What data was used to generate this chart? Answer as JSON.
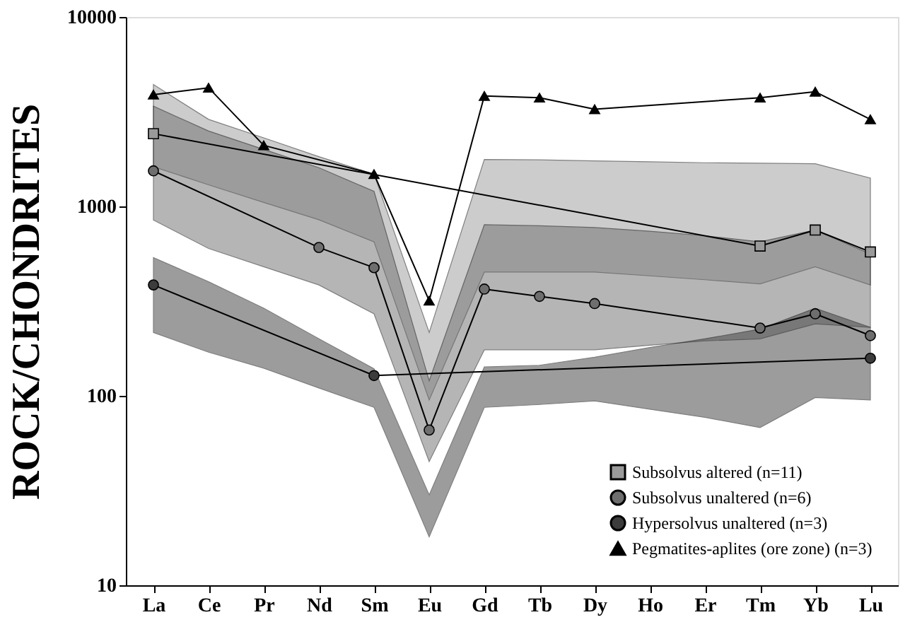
{
  "chart_data": {
    "type": "line",
    "ylabel": "ROCK/CHONDRITES",
    "categories": [
      "La",
      "Ce",
      "Pr",
      "Nd",
      "Sm",
      "Eu",
      "Gd",
      "Tb",
      "Dy",
      "Ho",
      "Er",
      "Tm",
      "Yb",
      "Lu"
    ],
    "series": [
      {
        "name": "Subsolvus altered (n=11)",
        "color": "#9a9a9a",
        "marker": "square",
        "values": [
          2420,
          null,
          null,
          null,
          null,
          null,
          null,
          null,
          null,
          null,
          null,
          618,
          750,
          575
        ],
        "lower": [
          1620,
          1300,
          1050,
          850,
          650,
          95,
          450,
          450,
          450,
          430,
          410,
          390,
          480,
          385
        ],
        "upper": [
          4400,
          2880,
          2300,
          1830,
          1480,
          216,
          1770,
          1760,
          1740,
          1720,
          1700,
          1690,
          1680,
          1410
        ]
      },
      {
        "name": "Subsolvus unaltered (n=6)",
        "color": "#6e6e6e",
        "marker": "circle",
        "values": [
          1540,
          null,
          null,
          607,
          475,
          66,
          366,
          335,
          307,
          null,
          null,
          228,
          271,
          208
        ],
        "lower": [
          847,
          600,
          480,
          385,
          271,
          45,
          175,
          175,
          175,
          185,
          195,
          200,
          240,
          230
        ],
        "upper": [
          3380,
          2500,
          2000,
          1600,
          1200,
          120,
          800,
          790,
          773,
          740,
          700,
          650,
          750,
          560
        ]
      },
      {
        "name": "Hypersolvus unaltered (n=3)",
        "color": "#3c3c3c",
        "marker": "circle",
        "values": [
          385,
          null,
          null,
          null,
          128,
          null,
          null,
          null,
          null,
          null,
          null,
          null,
          null,
          158
        ],
        "lower": [
          216,
          170,
          140,
          110,
          87,
          18,
          87,
          90,
          94,
          85,
          77,
          68,
          98,
          95
        ],
        "upper": [
          537,
          400,
          290,
          200,
          139,
          30,
          142,
          145,
          160,
          180,
          200,
          225,
          290,
          230
        ]
      },
      {
        "name": "Pegmatites-aplites (ore zone) (n=3)",
        "color": "#000000",
        "marker": "triangle",
        "values": [
          3890,
          4230,
          2100,
          null,
          1480,
          318,
          3830,
          3750,
          3260,
          null,
          null,
          3750,
          4030,
          2880
        ]
      }
    ],
    "log": true,
    "ylim": [
      10,
      10000
    ],
    "yticks": [
      10,
      100,
      1000,
      10000
    ],
    "grid": false,
    "legend": "bottom right"
  }
}
